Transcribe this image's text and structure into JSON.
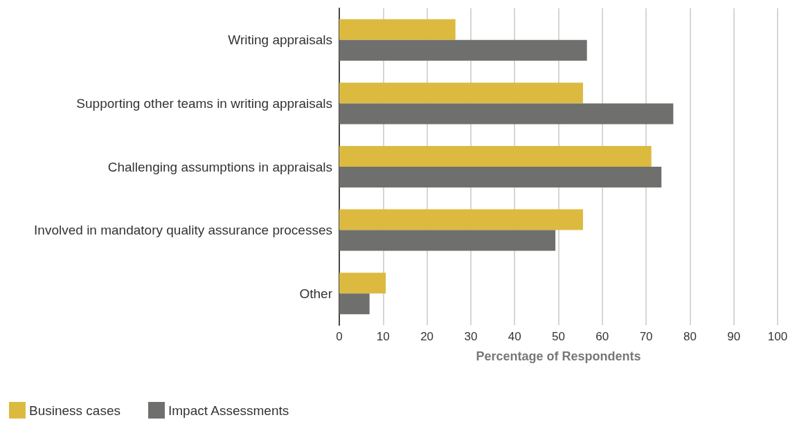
{
  "chart_data": {
    "type": "bar",
    "orientation": "horizontal",
    "xlabel": "Percentage of Respondents",
    "categories": [
      "Writing appraisals",
      "Supporting other teams in writing appraisals",
      "Challenging assumptions in appraisals",
      "Involved in mandatory quality assurance processes",
      "Other"
    ],
    "series": [
      {
        "name": "Business cases",
        "color": "#dcba40",
        "values": [
          26.5,
          55.6,
          71.2,
          55.6,
          10.6
        ]
      },
      {
        "name": "Impact Assessments",
        "color": "#6f6f6d",
        "values": [
          56.5,
          76.2,
          73.5,
          49.3,
          6.9
        ]
      }
    ],
    "xlim": [
      0,
      100
    ],
    "xticks": [
      0,
      10,
      20,
      30,
      40,
      50,
      60,
      70,
      80,
      90,
      100
    ],
    "grid": "x",
    "legend": "bottom left"
  }
}
